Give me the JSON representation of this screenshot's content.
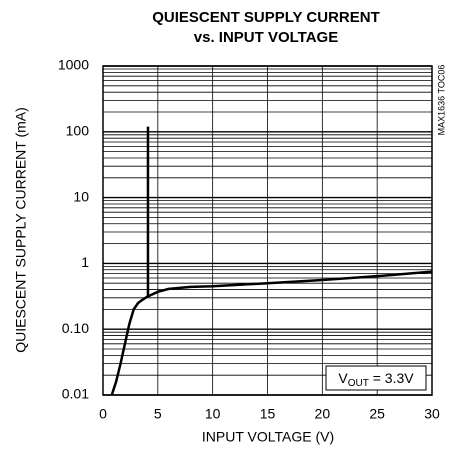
{
  "chart_data": {
    "type": "line",
    "title_lines": [
      "QUIESCENT SUPPLY CURRENT",
      "vs. INPUT VOLTAGE"
    ],
    "x_label": "INPUT VOLTAGE (V)",
    "y_label": "QUIESCENT SUPPLY CURRENT (mA)",
    "side_note": "MAX1636 TOC06",
    "annotation": {
      "base": "V",
      "sub": "OUT",
      "rest": " = 3.3V"
    },
    "log_y": true,
    "grid": true,
    "series": [
      {
        "color": "#000000",
        "x": [
          0.8,
          1.2,
          1.6,
          2.0,
          2.4,
          2.8,
          3.2,
          3.6,
          4.0,
          5,
          6,
          8,
          10,
          15,
          20,
          25,
          30
        ],
        "values": [
          0.01,
          0.016,
          0.03,
          0.06,
          0.12,
          0.2,
          0.25,
          0.28,
          0.31,
          0.37,
          0.41,
          0.44,
          0.45,
          0.5,
          0.56,
          0.64,
          0.75
        ]
      },
      {
        "color": "#000000",
        "x": [
          4.1,
          4.1
        ],
        "values": [
          0.3,
          120
        ]
      }
    ],
    "xlim": [
      0,
      30
    ],
    "xticks": [
      0,
      5,
      10,
      15,
      20,
      25,
      30
    ],
    "ylim": [
      0.01,
      1000
    ],
    "yticks": [
      0.01,
      {
        "value": 0.1,
        "label": "0.10"
      },
      1,
      10,
      100,
      1000
    ]
  }
}
